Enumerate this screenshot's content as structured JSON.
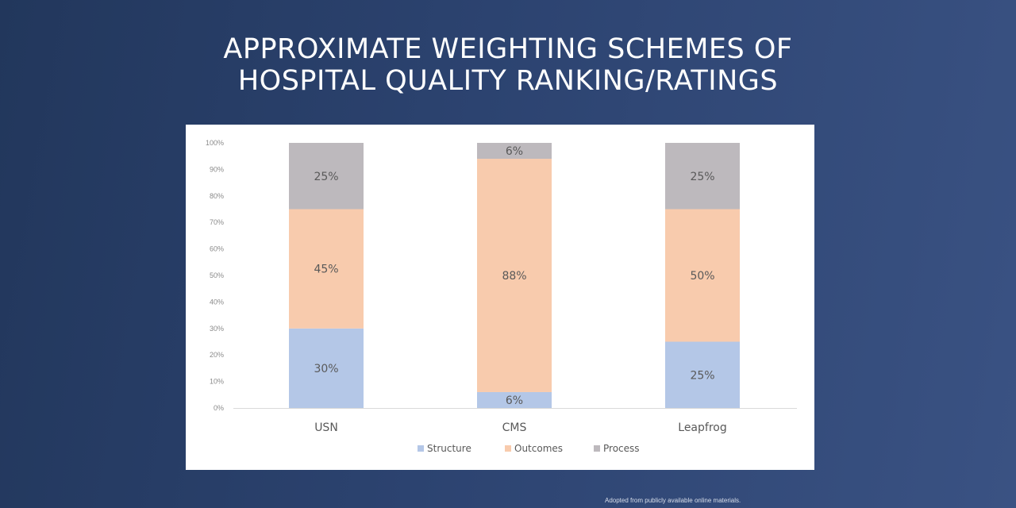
{
  "title_lines": [
    "APPROXIMATE WEIGHTING SCHEMES OF",
    "HOSPITAL QUALITY RANKING/RATINGS"
  ],
  "footnote": "Adopted from publicly available online materials.",
  "chart_data": {
    "type": "bar",
    "stacked": true,
    "categories": [
      "USN",
      "CMS",
      "Leapfrog"
    ],
    "series": [
      {
        "name": "Structure",
        "values": [
          30,
          6,
          25
        ],
        "labels": [
          "30%",
          "6%",
          "25%"
        ],
        "color": "#b4c7e7"
      },
      {
        "name": "Outcomes",
        "values": [
          45,
          88,
          50
        ],
        "labels": [
          "45%",
          "88%",
          "50%"
        ],
        "color": "#f8cbad"
      },
      {
        "name": "Process",
        "values": [
          25,
          6,
          25
        ],
        "labels": [
          "25%",
          "6%",
          "25%"
        ],
        "color": "#bdb9bd"
      }
    ],
    "yticks": [
      "0%",
      "10%",
      "20%",
      "30%",
      "40%",
      "50%",
      "60%",
      "70%",
      "80%",
      "90%",
      "100%"
    ],
    "ylim": [
      0,
      100
    ],
    "legend": "bottom",
    "grid": false
  }
}
